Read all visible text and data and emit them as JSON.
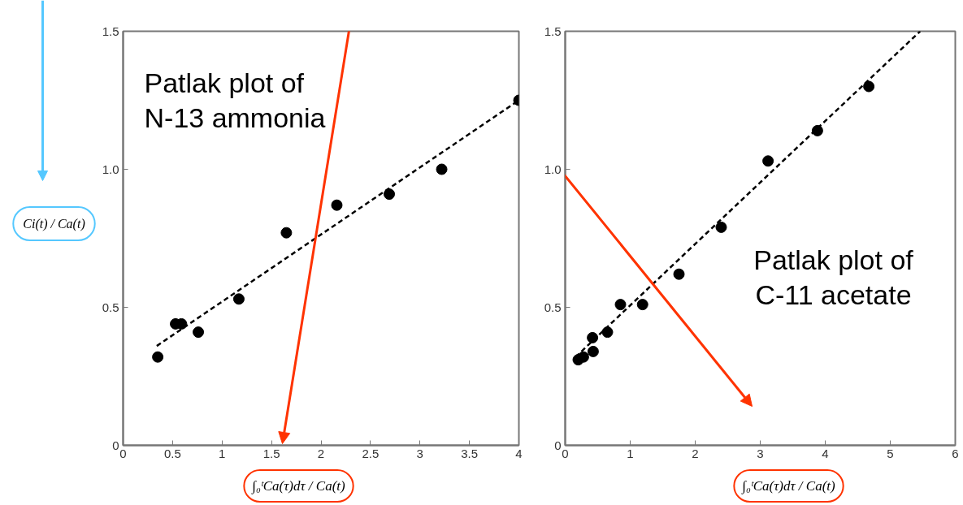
{
  "chart_data": [
    {
      "type": "scatter",
      "xlabel": "∫₀ᵗCa(τ)dτ / Ca(t)",
      "ylabel": "Ci(t) / Ca(t)",
      "annotations": [
        "Patlak plot of\nN-13 ammonia"
      ],
      "grid": false,
      "xlim": [
        0,
        4
      ],
      "ylim": [
        0,
        1.5
      ],
      "xticks": [
        0,
        0.5,
        1,
        1.5,
        2,
        2.5,
        3,
        3.5,
        4
      ],
      "yticks": [
        0,
        0.5,
        {
          "value": 1,
          "label": "1.0"
        },
        1.5
      ],
      "series": [
        {
          "marker": "circle",
          "color": "#000000",
          "x": [
            0.35,
            0.53,
            0.59,
            0.76,
            1.17,
            1.65,
            2.16,
            2.69,
            3.22,
            4.0
          ],
          "values": [
            0.32,
            0.44,
            0.44,
            0.41,
            0.53,
            0.77,
            0.87,
            0.91,
            1.0,
            1.25
          ]
        },
        {
          "type": "line",
          "color": "#000000",
          "line_style": "dashed",
          "x": [
            0.34,
            4.0
          ],
          "values": [
            0.36,
            1.25
          ]
        }
      ]
    },
    {
      "type": "scatter",
      "xlabel": "∫₀ᵗCa(τ)dτ / Ca(t)",
      "annotations": [
        "Patlak plot of\nC-11 acetate"
      ],
      "grid": false,
      "xlim": [
        0,
        6
      ],
      "ylim": [
        0,
        1.5
      ],
      "xticks": [
        0,
        1,
        2,
        3,
        4,
        5,
        6
      ],
      "yticks": [
        0,
        0.5,
        {
          "value": 1,
          "label": "1.0"
        },
        1.5
      ],
      "series": [
        {
          "marker": "circle",
          "color": "#000000",
          "x": [
            0.2,
            0.28,
            0.42,
            0.43,
            0.65,
            0.85,
            1.19,
            1.75,
            2.4,
            3.12,
            3.88,
            4.67
          ],
          "values": [
            0.31,
            0.32,
            0.39,
            0.34,
            0.41,
            0.51,
            0.51,
            0.62,
            0.79,
            1.03,
            1.14,
            1.3
          ]
        },
        {
          "type": "line",
          "color": "#000000",
          "line_style": "dashed",
          "x": [
            0.16,
            5.46
          ],
          "values": [
            0.32,
            1.5
          ]
        }
      ]
    }
  ]
}
